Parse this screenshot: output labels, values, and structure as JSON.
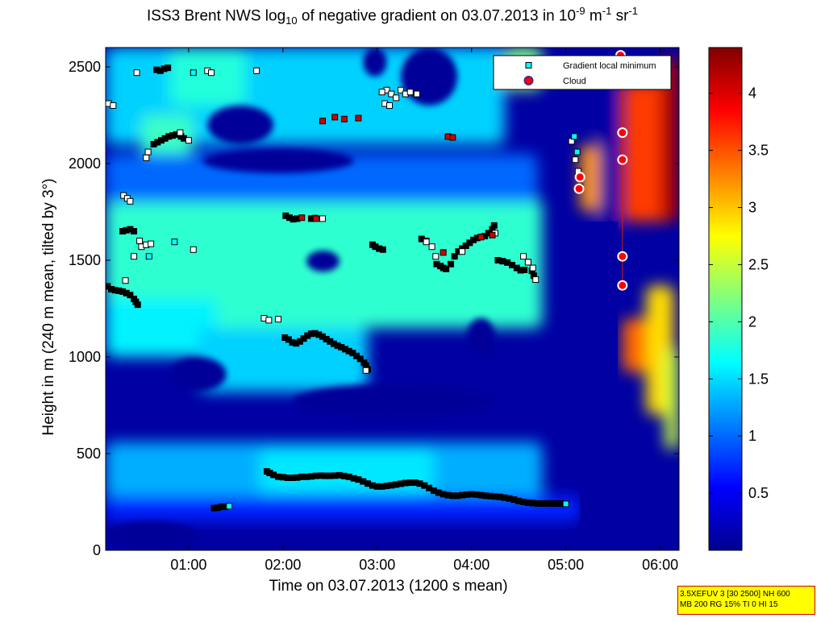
{
  "chart_data": {
    "type": "heatmap",
    "title_parts": {
      "prefix": "ISS3 Brent NWS log",
      "sub": "10",
      "middle": " of negative gradient on 03.07.2013 in 10",
      "exp1": "-9",
      "mid2": " m",
      "exp2": "-1",
      "mid3": " sr",
      "exp3": "-1"
    },
    "xlabel": "Time on 03.07.2013 (1200 s mean)",
    "ylabel": "Height in m (240 m mean, tilted by 3°)",
    "xlim": [
      0.12,
      6.2
    ],
    "ylim": [
      0,
      2600
    ],
    "xticks": [
      {
        "v": 1,
        "label": "01:00"
      },
      {
        "v": 2,
        "label": "02:00"
      },
      {
        "v": 3,
        "label": "03:00"
      },
      {
        "v": 4,
        "label": "04:00"
      },
      {
        "v": 5,
        "label": "05:00"
      },
      {
        "v": 6,
        "label": "06:00"
      }
    ],
    "yticks": [
      {
        "v": 0,
        "label": "0"
      },
      {
        "v": 500,
        "label": "500"
      },
      {
        "v": 1000,
        "label": "1000"
      },
      {
        "v": 1500,
        "label": "1500"
      },
      {
        "v": 2000,
        "label": "2000"
      },
      {
        "v": 2500,
        "label": "2500"
      }
    ],
    "colorbar": {
      "clim": [
        0,
        4.4
      ],
      "ticks": [
        {
          "v": 0.5,
          "label": "0.5"
        },
        {
          "v": 1,
          "label": "1"
        },
        {
          "v": 1.5,
          "label": "1.5"
        },
        {
          "v": 2,
          "label": "2"
        },
        {
          "v": 2.5,
          "label": "2.5"
        },
        {
          "v": 3,
          "label": "3"
        },
        {
          "v": 3.5,
          "label": "3.5"
        },
        {
          "v": 4,
          "label": "4"
        }
      ]
    },
    "legend": {
      "position": "top-right",
      "entries": [
        {
          "label": "Gradient local minimum",
          "marker": "square",
          "color": "#00ffff"
        },
        {
          "label": "Cloud",
          "marker": "circle",
          "color": "#ff0000"
        }
      ]
    },
    "background_level": 0.1,
    "regions": [
      {
        "x": [
          0.12,
          4.75
        ],
        "y": [
          260,
          560
        ],
        "level": 1.3
      },
      {
        "x": [
          0.12,
          5.15
        ],
        "y": [
          150,
          280
        ],
        "level": 0.7
      },
      {
        "x": [
          1.75,
          3.6
        ],
        "y": [
          300,
          520
        ],
        "level": 1.55
      },
      {
        "x": [
          0.12,
          4.75
        ],
        "y": [
          1150,
          1820
        ],
        "level": 1.85
      },
      {
        "x": [
          0.12,
          1.3
        ],
        "y": [
          1000,
          1300
        ],
        "level": 1.6
      },
      {
        "x": [
          1.1,
          2.9
        ],
        "y": [
          820,
          1150
        ],
        "level": 1.45
      },
      {
        "x": [
          0.12,
          4.7
        ],
        "y": [
          1800,
          2050
        ],
        "level": 1.0
      },
      {
        "x": [
          0.12,
          4.35
        ],
        "y": [
          2100,
          2600
        ],
        "level": 1.45
      },
      {
        "x": [
          0.5,
          1.05
        ],
        "y": [
          2050,
          2250
        ],
        "level": 1.9
      },
      {
        "x": [
          0.8,
          1.6
        ],
        "y": [
          2300,
          2600
        ],
        "level": 1.8
      },
      {
        "x": [
          4.35,
          4.75
        ],
        "y": [
          2380,
          2600
        ],
        "level": 2.2
      },
      {
        "x": [
          5.15,
          5.35
        ],
        "y": [
          1750,
          2100
        ],
        "level": 3.2
      },
      {
        "x": [
          5.35,
          5.55
        ],
        "y": [
          1600,
          2500
        ],
        "level": 0.1
      },
      {
        "x": [
          5.6,
          6.2
        ],
        "y": [
          1700,
          2420
        ],
        "level": 3.6
      },
      {
        "x": [
          6.0,
          6.2
        ],
        "y": [
          1700,
          2550
        ],
        "level": 4.2
      },
      {
        "x": [
          5.6,
          5.9
        ],
        "y": [
          920,
          1200
        ],
        "level": 3.4
      },
      {
        "x": [
          5.85,
          6.15
        ],
        "y": [
          700,
          1370
        ],
        "level": 2.9
      },
      {
        "x": [
          6.05,
          6.2
        ],
        "y": [
          520,
          1050
        ],
        "level": 2.5
      }
    ],
    "holes": [
      {
        "x": [
          0.12,
          1.1
        ],
        "y": [
          0,
          150
        ],
        "level": 0.05
      },
      {
        "x": [
          2.1,
          4.25
        ],
        "y": [
          680,
          860
        ],
        "level": 0.05
      },
      {
        "x": [
          0.8,
          1.4
        ],
        "y": [
          820,
          1000
        ],
        "level": 0.05
      },
      {
        "x": [
          3.95,
          4.25
        ],
        "y": [
          1000,
          1200
        ],
        "level": 0.05
      },
      {
        "x": [
          2.25,
          2.6
        ],
        "y": [
          1440,
          1550
        ],
        "level": 0.05
      },
      {
        "x": [
          1.15,
          2.75
        ],
        "y": [
          1950,
          2080
        ],
        "level": 0.05
      },
      {
        "x": [
          1.2,
          1.9
        ],
        "y": [
          2100,
          2300
        ],
        "level": 0.05
      },
      {
        "x": [
          3.25,
          3.85
        ],
        "y": [
          2300,
          2600
        ],
        "level": 0.05
      },
      {
        "x": [
          2.85,
          3.1
        ],
        "y": [
          2450,
          2600
        ],
        "level": 0.05
      }
    ],
    "minima_black": [
      [
        1.27,
        218
      ],
      [
        1.31,
        220
      ],
      [
        1.35,
        225
      ],
      [
        1.39,
        225
      ],
      [
        1.83,
        408
      ],
      [
        1.86,
        400
      ],
      [
        1.9,
        390
      ],
      [
        1.95,
        380
      ],
      [
        2.0,
        378
      ],
      [
        2.05,
        375
      ],
      [
        2.1,
        375
      ],
      [
        2.15,
        376
      ],
      [
        2.2,
        380
      ],
      [
        2.25,
        380
      ],
      [
        2.3,
        382
      ],
      [
        2.35,
        385
      ],
      [
        2.4,
        386
      ],
      [
        2.45,
        385
      ],
      [
        2.5,
        385
      ],
      [
        2.55,
        386
      ],
      [
        2.6,
        388
      ],
      [
        2.65,
        384
      ],
      [
        2.7,
        380
      ],
      [
        2.75,
        372
      ],
      [
        2.8,
        366
      ],
      [
        2.85,
        356
      ],
      [
        2.9,
        345
      ],
      [
        2.95,
        335
      ],
      [
        3.0,
        330
      ],
      [
        3.05,
        330
      ],
      [
        3.1,
        333
      ],
      [
        3.15,
        336
      ],
      [
        3.2,
        340
      ],
      [
        3.25,
        344
      ],
      [
        3.3,
        348
      ],
      [
        3.35,
        350
      ],
      [
        3.4,
        350
      ],
      [
        3.45,
        345
      ],
      [
        3.5,
        335
      ],
      [
        3.55,
        322
      ],
      [
        3.6,
        308
      ],
      [
        3.65,
        298
      ],
      [
        3.7,
        290
      ],
      [
        3.75,
        285
      ],
      [
        3.8,
        282
      ],
      [
        3.85,
        282
      ],
      [
        3.9,
        285
      ],
      [
        3.95,
        288
      ],
      [
        4.0,
        290
      ],
      [
        4.05,
        288
      ],
      [
        4.1,
        285
      ],
      [
        4.15,
        282
      ],
      [
        4.2,
        280
      ],
      [
        4.25,
        278
      ],
      [
        4.3,
        276
      ],
      [
        4.35,
        272
      ],
      [
        4.4,
        268
      ],
      [
        4.45,
        262
      ],
      [
        4.5,
        255
      ],
      [
        4.55,
        250
      ],
      [
        4.6,
        246
      ],
      [
        4.65,
        244
      ],
      [
        4.7,
        242
      ],
      [
        4.75,
        242
      ],
      [
        4.8,
        242
      ],
      [
        4.85,
        242
      ],
      [
        4.9,
        242
      ],
      [
        4.95,
        242
      ],
      [
        2.02,
        1100
      ],
      [
        2.06,
        1090
      ],
      [
        2.1,
        1075
      ],
      [
        2.14,
        1070
      ],
      [
        2.18,
        1080
      ],
      [
        2.22,
        1095
      ],
      [
        2.26,
        1110
      ],
      [
        2.3,
        1120
      ],
      [
        2.34,
        1122
      ],
      [
        2.38,
        1115
      ],
      [
        2.42,
        1105
      ],
      [
        2.46,
        1092
      ],
      [
        2.5,
        1080
      ],
      [
        2.54,
        1068
      ],
      [
        2.58,
        1058
      ],
      [
        2.62,
        1050
      ],
      [
        2.66,
        1040
      ],
      [
        2.7,
        1030
      ],
      [
        2.74,
        1020
      ],
      [
        2.78,
        1005
      ],
      [
        2.82,
        990
      ],
      [
        2.86,
        970
      ],
      [
        2.88,
        955
      ],
      [
        2.9,
        935
      ],
      [
        0.14,
        1365
      ],
      [
        0.18,
        1350
      ],
      [
        0.22,
        1345
      ],
      [
        0.26,
        1342
      ],
      [
        0.3,
        1338
      ],
      [
        0.34,
        1330
      ],
      [
        0.38,
        1320
      ],
      [
        0.42,
        1300
      ],
      [
        0.44,
        1285
      ],
      [
        0.46,
        1270
      ],
      [
        0.63,
        2100
      ],
      [
        0.67,
        2110
      ],
      [
        0.71,
        2120
      ],
      [
        0.75,
        2130
      ],
      [
        0.79,
        2140
      ],
      [
        0.83,
        2145
      ],
      [
        0.87,
        2150
      ],
      [
        0.92,
        2140
      ],
      [
        0.95,
        2130
      ],
      [
        0.66,
        2485
      ],
      [
        0.7,
        2480
      ],
      [
        0.74,
        2490
      ],
      [
        0.78,
        2495
      ],
      [
        3.63,
        1480
      ],
      [
        3.67,
        1470
      ],
      [
        3.7,
        1460
      ],
      [
        3.73,
        1455
      ],
      [
        3.78,
        1480
      ],
      [
        3.82,
        1520
      ],
      [
        3.86,
        1545
      ],
      [
        3.9,
        1560
      ],
      [
        3.94,
        1575
      ],
      [
        3.98,
        1590
      ],
      [
        4.02,
        1605
      ],
      [
        4.06,
        1615
      ],
      [
        4.1,
        1620
      ],
      [
        4.14,
        1625
      ],
      [
        4.18,
        1640
      ],
      [
        4.22,
        1660
      ],
      [
        4.24,
        1680
      ],
      [
        4.28,
        1500
      ],
      [
        4.33,
        1495
      ],
      [
        4.38,
        1488
      ],
      [
        4.43,
        1475
      ],
      [
        4.48,
        1460
      ],
      [
        4.52,
        1448
      ],
      [
        4.56,
        1450
      ],
      [
        4.6,
        1490
      ],
      [
        4.64,
        1445
      ],
      [
        4.66,
        1420
      ],
      [
        2.95,
        1580
      ],
      [
        2.98,
        1570
      ],
      [
        3.02,
        1560
      ],
      [
        3.06,
        1555
      ],
      [
        2.03,
        1730
      ],
      [
        2.07,
        1720
      ],
      [
        2.11,
        1712
      ],
      [
        2.15,
        1715
      ],
      [
        2.3,
        1715
      ],
      [
        2.34,
        1718
      ],
      [
        3.47,
        1610
      ],
      [
        3.52,
        1600
      ],
      [
        0.3,
        1650
      ],
      [
        0.34,
        1655
      ],
      [
        0.38,
        1660
      ],
      [
        0.42,
        1650
      ]
    ],
    "minima_white": [
      [
        0.15,
        2310
      ],
      [
        0.2,
        2300
      ],
      [
        0.31,
        1835
      ],
      [
        0.35,
        1820
      ],
      [
        0.38,
        1805
      ],
      [
        0.33,
        1395
      ],
      [
        0.42,
        1520
      ],
      [
        0.48,
        1600
      ],
      [
        0.5,
        1570
      ],
      [
        0.55,
        1580
      ],
      [
        0.6,
        1585
      ],
      [
        0.55,
        2030
      ],
      [
        0.57,
        2060
      ],
      [
        0.45,
        2470
      ],
      [
        0.91,
        2160
      ],
      [
        1.0,
        2120
      ],
      [
        1.05,
        1555
      ],
      [
        1.8,
        1200
      ],
      [
        1.85,
        1190
      ],
      [
        1.95,
        1195
      ],
      [
        2.42,
        1715
      ],
      [
        3.1,
        2380
      ],
      [
        3.15,
        2360
      ],
      [
        3.2,
        2340
      ],
      [
        3.25,
        2380
      ],
      [
        3.3,
        2360
      ],
      [
        3.35,
        2370
      ],
      [
        3.42,
        2360
      ],
      [
        3.05,
        2370
      ],
      [
        3.08,
        2310
      ],
      [
        3.13,
        2300
      ],
      [
        3.52,
        1595
      ],
      [
        3.58,
        1570
      ],
      [
        3.62,
        1520
      ],
      [
        3.9,
        1545
      ],
      [
        4.25,
        1640
      ],
      [
        4.55,
        1520
      ],
      [
        4.6,
        1490
      ],
      [
        4.65,
        1460
      ],
      [
        4.68,
        1400
      ],
      [
        2.88,
        930
      ],
      [
        5.06,
        2115
      ],
      [
        5.1,
        2020
      ],
      [
        5.13,
        1960
      ],
      [
        5.15,
        1880
      ],
      [
        1.2,
        2480
      ],
      [
        1.24,
        2470
      ],
      [
        1.72,
        2480
      ]
    ],
    "minima_cyan": [
      [
        1.43,
        228
      ],
      [
        5.0,
        240
      ],
      [
        0.85,
        1595
      ],
      [
        1.05,
        2470
      ],
      [
        5.09,
        2140
      ],
      [
        5.12,
        2060
      ],
      [
        0.58,
        1520
      ]
    ],
    "minima_red": [
      [
        2.2,
        1720
      ],
      [
        2.35,
        1715
      ],
      [
        2.55,
        2240
      ],
      [
        2.65,
        2230
      ],
      [
        2.8,
        2235
      ],
      [
        3.75,
        2140
      ],
      [
        3.8,
        2135
      ],
      [
        3.7,
        1540
      ],
      [
        4.22,
        1630
      ],
      [
        4.1,
        1620
      ],
      [
        2.42,
        2220
      ]
    ],
    "clouds": [
      [
        5.58,
        2560
      ],
      [
        5.6,
        2160
      ],
      [
        5.6,
        2020
      ],
      [
        5.6,
        1520
      ],
      [
        5.6,
        1370
      ],
      [
        5.14,
        1870
      ],
      [
        5.15,
        1930
      ]
    ]
  },
  "footer": {
    "line1": "3.5XEFUV 3 [30 2500] NH 600",
    "line2": "MB 200 RG 15% TI 0 HI 15"
  }
}
